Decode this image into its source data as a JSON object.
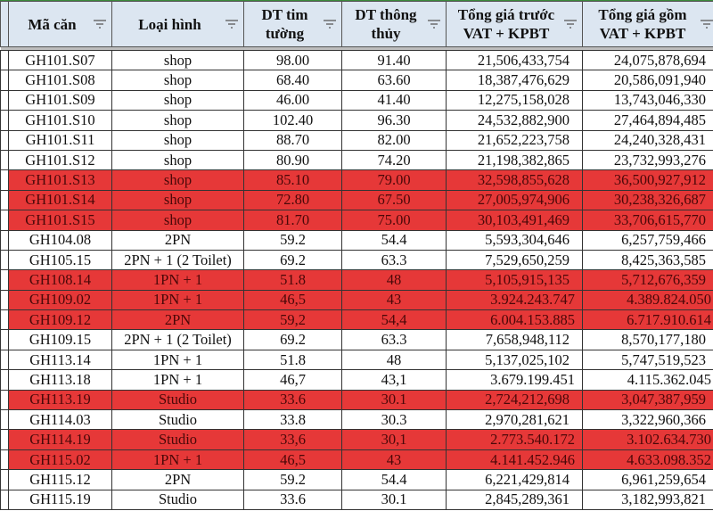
{
  "headers": [
    "Mã căn",
    "Loại hình",
    "DT tim tường",
    "DT thông thủy",
    "Tổng giá trước VAT + KPBT",
    "Tổng giá gồm VAT + KPBT"
  ],
  "highlight_color": "#e63838",
  "rows": [
    {
      "ma": "GH101.S07",
      "loai": "shop",
      "tim": "98.00",
      "thuy": "91.40",
      "truoc": "21,506,433,754",
      "gom": "24,075,878,694",
      "red": false
    },
    {
      "ma": "GH101.S08",
      "loai": "shop",
      "tim": "68.40",
      "thuy": "63.60",
      "truoc": "18,387,476,629",
      "gom": "20,586,091,940",
      "red": false
    },
    {
      "ma": "GH101.S09",
      "loai": "shop",
      "tim": "46.00",
      "thuy": "41.40",
      "truoc": "12,275,158,028",
      "gom": "13,743,046,330",
      "red": false
    },
    {
      "ma": "GH101.S10",
      "loai": "shop",
      "tim": "102.40",
      "thuy": "96.30",
      "truoc": "24,532,882,900",
      "gom": "27,464,894,485",
      "red": false
    },
    {
      "ma": "GH101.S11",
      "loai": "shop",
      "tim": "88.70",
      "thuy": "82.00",
      "truoc": "21,652,223,758",
      "gom": "24,240,328,431",
      "red": false
    },
    {
      "ma": "GH101.S12",
      "loai": "shop",
      "tim": "80.90",
      "thuy": "74.20",
      "truoc": "21,198,382,865",
      "gom": "23,732,993,276",
      "red": false
    },
    {
      "ma": "GH101.S13",
      "loai": "shop",
      "tim": "85.10",
      "thuy": "79.00",
      "truoc": "32,598,855,628",
      "gom": "36,500,927,912",
      "red": true
    },
    {
      "ma": "GH101.S14",
      "loai": "shop",
      "tim": "72.80",
      "thuy": "67.50",
      "truoc": "27,005,974,906",
      "gom": "30,238,326,687",
      "red": true
    },
    {
      "ma": "GH101.S15",
      "loai": "shop",
      "tim": "81.70",
      "thuy": "75.00",
      "truoc": "30,103,491,469",
      "gom": "33,706,615,770",
      "red": true
    },
    {
      "ma": "GH104.08",
      "loai": "2PN",
      "tim": "59.2",
      "thuy": "54.4",
      "truoc": "5,593,304,646",
      "gom": "6,257,759,466",
      "red": false
    },
    {
      "ma": "GH105.15",
      "loai": "2PN + 1 (2 Toilet)",
      "tim": "69.2",
      "thuy": "63.3",
      "truoc": "7,529,650,259",
      "gom": "8,425,363,585",
      "red": false
    },
    {
      "ma": "GH108.14",
      "loai": "1PN + 1",
      "tim": "51.8",
      "thuy": "48",
      "truoc": "5,105,915,135",
      "gom": "5,712,676,359",
      "red": true
    },
    {
      "ma": "GH109.02",
      "loai": "1PN + 1",
      "tim": "46,5",
      "thuy": "43",
      "truoc": "3.924.243.747",
      "gom": "4.389.824.050",
      "red": true
    },
    {
      "ma": "GH109.12",
      "loai": "2PN",
      "tim": "59,2",
      "thuy": "54,4",
      "truoc": "6.004.153.885",
      "gom": "6.717.910.614",
      "red": true
    },
    {
      "ma": "GH109.15",
      "loai": "2PN + 1 (2 Toilet)",
      "tim": "69.2",
      "thuy": "63.3",
      "truoc": "7,658,948,112",
      "gom": "8,570,177,180",
      "red": false
    },
    {
      "ma": "GH113.14",
      "loai": "1PN + 1",
      "tim": "51.8",
      "thuy": "48",
      "truoc": "5,137,025,102",
      "gom": "5,747,519,523",
      "red": false
    },
    {
      "ma": "GH113.18",
      "loai": "1PN + 1",
      "tim": "46,7",
      "thuy": "43,1",
      "truoc": "3.679.199.451",
      "gom": "4.115.362.045",
      "red": false
    },
    {
      "ma": "GH113.19",
      "loai": "Studio",
      "tim": "33.6",
      "thuy": "30.1",
      "truoc": "2,724,212,698",
      "gom": "3,047,387,959",
      "red": true
    },
    {
      "ma": "GH114.03",
      "loai": "Studio",
      "tim": "33.8",
      "thuy": "30.3",
      "truoc": "2,970,281,621",
      "gom": "3,322,960,366",
      "red": false
    },
    {
      "ma": "GH114.19",
      "loai": "Studio",
      "tim": "33,6",
      "thuy": "30,1",
      "truoc": "2.773.540.172",
      "gom": "3.102.634.730",
      "red": true
    },
    {
      "ma": "GH115.02",
      "loai": "1PN + 1",
      "tim": "46,5",
      "thuy": "43",
      "truoc": "4.141.452.946",
      "gom": "4.633.098.352",
      "red": true
    },
    {
      "ma": "GH115.12",
      "loai": "2PN",
      "tim": "59.2",
      "thuy": "54.4",
      "truoc": "6,221,429,814",
      "gom": "6,961,259,654",
      "red": false
    },
    {
      "ma": "GH115.19",
      "loai": "Studio",
      "tim": "33.6",
      "thuy": "30.1",
      "truoc": "2,845,289,361",
      "gom": "3,182,993,821",
      "red": false
    }
  ]
}
